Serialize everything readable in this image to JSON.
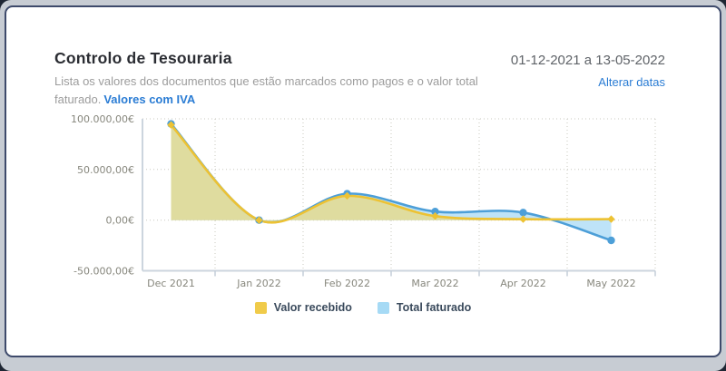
{
  "theme": {
    "background": "#c7ccd3",
    "card_background": "#ffffff",
    "card_border": "#3e4a6b",
    "link_blue": "#2a7cd4",
    "title_color": "#2b2d33",
    "muted_text": "#9c9c9c",
    "axis_label_color": "#87877d",
    "legend_text_color": "#3a4a5c"
  },
  "header": {
    "title": "Controlo de Tesouraria",
    "description": "Lista os valores dos documentos que estão marcados como pagos e o valor total faturado.",
    "description_link": "Valores com IVA",
    "date_range": "01-12-2021 a 13-05-2022",
    "change_dates_label": "Alterar datas"
  },
  "chart_data": {
    "type": "area",
    "title": "Controlo de Tesouraria",
    "categories": [
      "Dec 2021",
      "Jan 2022",
      "Feb 2022",
      "Mar 2022",
      "Apr 2022",
      "May 2022"
    ],
    "series": [
      {
        "name": "Total faturado",
        "line_color": "#4d9fd8",
        "fill_color": "#bee3f8",
        "marker": "circle",
        "values": [
          95000,
          0,
          26000,
          8500,
          7500,
          -20000
        ]
      },
      {
        "name": "Valor recebido",
        "line_color": "#edc233",
        "fill_color": "#dfdc9f",
        "marker": "diamond",
        "values": [
          94000,
          0,
          24000,
          4000,
          1000,
          1000
        ]
      }
    ],
    "ylim": [
      -50000,
      100000
    ],
    "yticks": [
      {
        "value": 100000,
        "label": "100.000,00€"
      },
      {
        "value": 50000,
        "label": "50.000,00€"
      },
      {
        "value": 0,
        "label": "0,00€"
      },
      {
        "value": -50000,
        "label": "-50.000,00€"
      }
    ],
    "grid": "dotted",
    "smooth": true,
    "fill_to": 0,
    "legend_position": "bottom"
  },
  "legend": {
    "items": [
      {
        "label": "Valor recebido",
        "color": "#f0cb4a"
      },
      {
        "label": "Total faturado",
        "color": "#a6daf5"
      }
    ]
  }
}
